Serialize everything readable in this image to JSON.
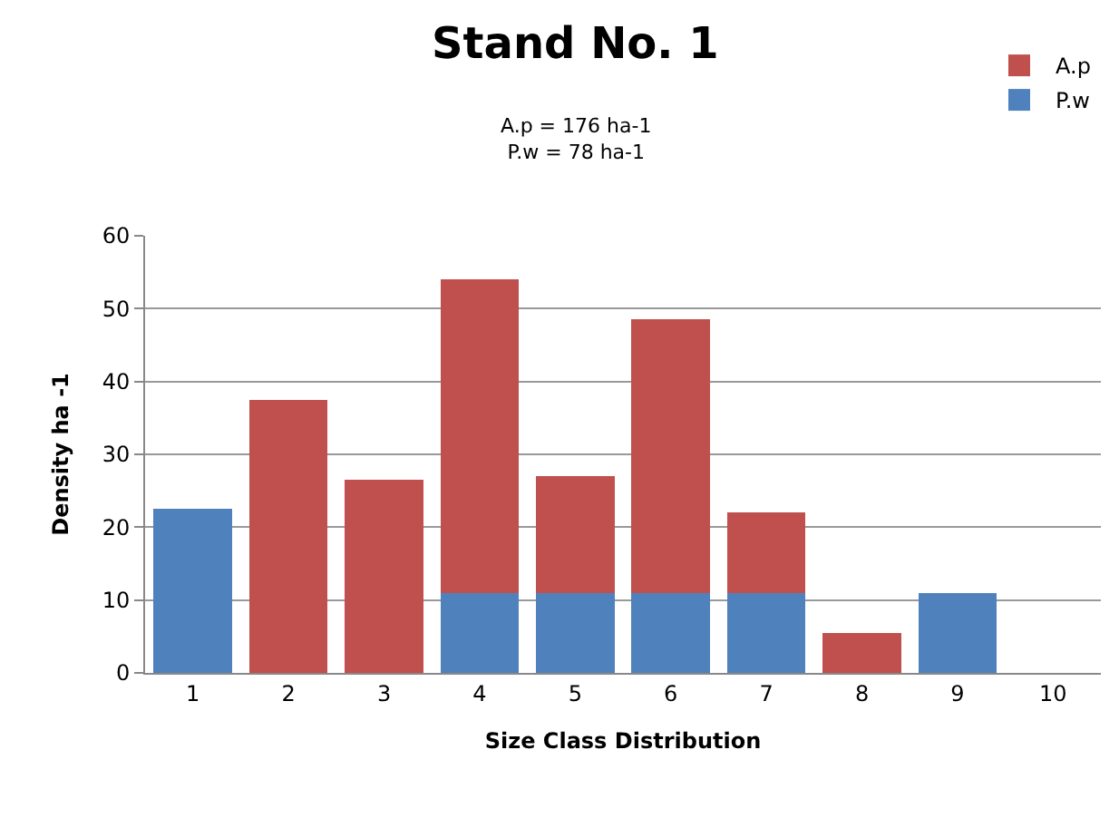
{
  "chart_data": {
    "type": "bar",
    "title": "Stand No. 1",
    "subtitle": "A.p = 176 ha-1\nP.w = 78 ha-1",
    "xlabel": "Size Class Distribution",
    "ylabel": "Density ha -1",
    "categories": [
      "1",
      "2",
      "3",
      "4",
      "5",
      "6",
      "7",
      "8",
      "9",
      "10"
    ],
    "stacked": true,
    "series": [
      {
        "name": "P.w",
        "color": "#4f81bd",
        "values": [
          22.5,
          0,
          0,
          11,
          11,
          11,
          11,
          0,
          11,
          0
        ]
      },
      {
        "name": "A.p",
        "color": "#c0504d",
        "values": [
          0,
          37.5,
          26.5,
          43,
          16,
          37.5,
          11,
          5.5,
          0,
          0
        ]
      }
    ],
    "ylim": [
      0,
      60
    ],
    "yticks": [
      0,
      10,
      20,
      30,
      40,
      50,
      60
    ],
    "grid": "y",
    "legend": "top right"
  }
}
